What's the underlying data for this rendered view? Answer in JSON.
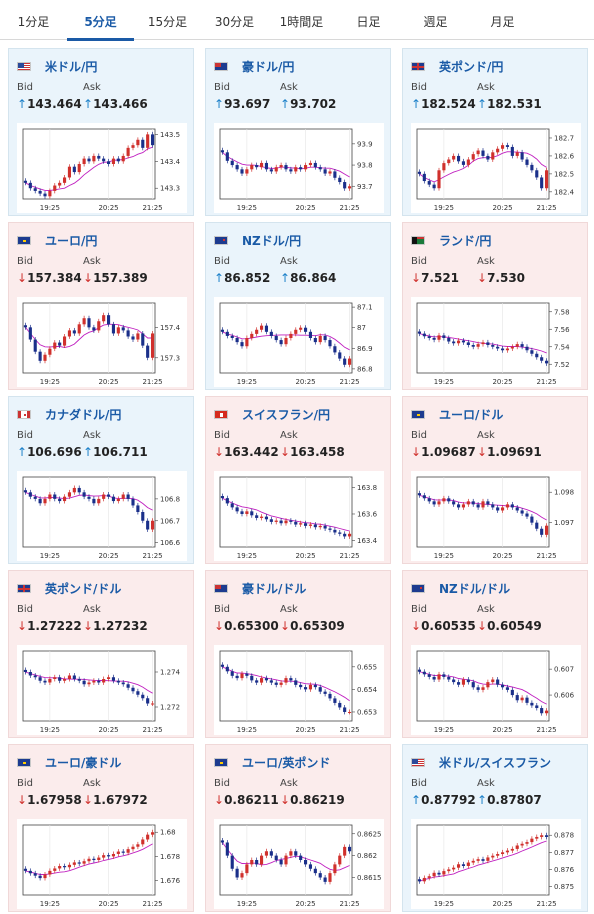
{
  "tabs": [
    {
      "label": "1分足",
      "active": false
    },
    {
      "label": "5分足",
      "active": true
    },
    {
      "label": "15分足",
      "active": false
    },
    {
      "label": "30分足",
      "active": false
    },
    {
      "label": "1時間足",
      "active": false
    },
    {
      "label": "日足",
      "active": false
    },
    {
      "label": "週足",
      "active": false
    },
    {
      "label": "月足",
      "active": false
    }
  ],
  "labels": {
    "bid": "Bid",
    "ask": "Ask"
  },
  "colors": {
    "up": "#1c80c9",
    "down": "#d0302c",
    "ma": "#c020c0",
    "link": "#1a5aa6"
  },
  "time_ticks": [
    "19:25",
    "20:25",
    "21:25"
  ],
  "pairs": [
    {
      "name": "米ドル/円",
      "flag": "us-flag",
      "dir": "up",
      "bid": "143.464",
      "ask": "143.466",
      "chart_data": {
        "type": "candlestick",
        "yticks": [
          "143.5",
          "143.4",
          "143.3"
        ],
        "ylim": [
          143.26,
          143.52
        ],
        "close": [
          143.32,
          143.3,
          143.29,
          143.28,
          143.27,
          143.29,
          143.31,
          143.32,
          143.34,
          143.38,
          143.36,
          143.39,
          143.41,
          143.4,
          143.42,
          143.41,
          143.4,
          143.39,
          143.41,
          143.4,
          143.42,
          143.45,
          143.46,
          143.48,
          143.45,
          143.5,
          143.46
        ]
      }
    },
    {
      "name": "豪ドル/円",
      "flag": "au-flag",
      "dir": "up",
      "bid": "93.697",
      "ask": "93.702",
      "chart_data": {
        "type": "candlestick",
        "yticks": [
          "93.9",
          "93.8",
          "93.7"
        ],
        "ylim": [
          93.64,
          93.97
        ],
        "close": [
          93.86,
          93.82,
          93.8,
          93.78,
          93.76,
          93.78,
          93.8,
          93.79,
          93.81,
          93.78,
          93.77,
          93.79,
          93.8,
          93.78,
          93.77,
          93.79,
          93.78,
          93.8,
          93.81,
          93.79,
          93.78,
          93.76,
          93.77,
          93.74,
          93.72,
          93.69,
          93.7
        ]
      }
    },
    {
      "name": "英ポンド/円",
      "flag": "gb-flag",
      "dir": "up",
      "bid": "182.524",
      "ask": "182.531",
      "chart_data": {
        "type": "candlestick",
        "yticks": [
          "182.7",
          "182.6",
          "182.5",
          "182.4"
        ],
        "ylim": [
          182.36,
          182.75
        ],
        "close": [
          182.5,
          182.46,
          182.44,
          182.42,
          182.52,
          182.56,
          182.58,
          182.6,
          182.57,
          182.55,
          182.58,
          182.61,
          182.63,
          182.6,
          182.58,
          182.62,
          182.64,
          182.66,
          182.65,
          182.6,
          182.62,
          182.58,
          182.55,
          182.52,
          182.48,
          182.42,
          182.52
        ]
      }
    },
    {
      "name": "ユーロ/円",
      "flag": "eu-flag",
      "dir": "down",
      "bid": "157.384",
      "ask": "157.389",
      "chart_data": {
        "type": "candlestick",
        "yticks": [
          "157.4",
          "157.3"
        ],
        "ylim": [
          157.25,
          157.48
        ],
        "close": [
          157.4,
          157.36,
          157.32,
          157.29,
          157.31,
          157.33,
          157.35,
          157.34,
          157.37,
          157.39,
          157.38,
          157.41,
          157.43,
          157.4,
          157.39,
          157.42,
          157.44,
          157.41,
          157.38,
          157.4,
          157.39,
          157.37,
          157.36,
          157.38,
          157.34,
          157.3,
          157.38
        ]
      }
    },
    {
      "name": "NZドル/円",
      "flag": "nz-flag",
      "dir": "up",
      "bid": "86.852",
      "ask": "86.864",
      "chart_data": {
        "type": "candlestick",
        "yticks": [
          "87.1",
          "87",
          "86.9",
          "86.8"
        ],
        "ylim": [
          86.78,
          87.12
        ],
        "close": [
          86.98,
          86.96,
          86.95,
          86.93,
          86.91,
          86.95,
          86.97,
          86.99,
          87.01,
          86.98,
          86.96,
          86.94,
          86.92,
          86.95,
          86.97,
          86.99,
          87.0,
          86.98,
          86.95,
          86.93,
          86.96,
          86.94,
          86.91,
          86.88,
          86.85,
          86.82,
          86.85
        ]
      }
    },
    {
      "name": "ランド/円",
      "flag": "za-flag",
      "dir": "down",
      "bid": "7.521",
      "ask": "7.530",
      "chart_data": {
        "type": "candlestick",
        "yticks": [
          "7.58",
          "7.56",
          "7.54",
          "7.52"
        ],
        "ylim": [
          7.51,
          7.59
        ],
        "close": [
          7.555,
          7.552,
          7.55,
          7.548,
          7.553,
          7.55,
          7.546,
          7.544,
          7.547,
          7.545,
          7.542,
          7.54,
          7.543,
          7.545,
          7.542,
          7.54,
          7.538,
          7.536,
          7.538,
          7.54,
          7.543,
          7.54,
          7.536,
          7.532,
          7.528,
          7.524,
          7.521
        ]
      }
    },
    {
      "name": "カナダドル/円",
      "flag": "ca-flag",
      "dir": "up",
      "bid": "106.696",
      "ask": "106.711",
      "chart_data": {
        "type": "candlestick",
        "yticks": [
          "106.8",
          "106.7",
          "106.6"
        ],
        "ylim": [
          106.58,
          106.9
        ],
        "close": [
          106.83,
          106.81,
          106.8,
          106.78,
          106.8,
          106.82,
          106.8,
          106.79,
          106.81,
          106.83,
          106.85,
          106.83,
          106.81,
          106.8,
          106.78,
          106.8,
          106.82,
          106.81,
          106.79,
          106.8,
          106.82,
          106.8,
          106.77,
          106.74,
          106.7,
          106.66,
          106.7
        ]
      }
    },
    {
      "name": "スイスフラン/円",
      "flag": "ch-flag",
      "dir": "down",
      "bid": "163.442",
      "ask": "163.458",
      "chart_data": {
        "type": "candlestick",
        "yticks": [
          "163.8",
          "163.6",
          "163.4"
        ],
        "ylim": [
          163.35,
          163.88
        ],
        "close": [
          163.72,
          163.68,
          163.65,
          163.62,
          163.6,
          163.62,
          163.59,
          163.57,
          163.58,
          163.56,
          163.54,
          163.55,
          163.53,
          163.55,
          163.54,
          163.52,
          163.53,
          163.51,
          163.52,
          163.5,
          163.51,
          163.49,
          163.48,
          163.46,
          163.45,
          163.43,
          163.45
        ]
      }
    },
    {
      "name": "ユーロ/ドル",
      "flag": "eu-us-flag",
      "dir": "down",
      "bid": "1.09687",
      "ask": "1.09691",
      "chart_data": {
        "type": "candlestick",
        "yticks": [
          "1.098",
          "1.097"
        ],
        "ylim": [
          1.0962,
          1.0985
        ],
        "close": [
          1.0979,
          1.0978,
          1.0977,
          1.0976,
          1.0977,
          1.0978,
          1.0977,
          1.0976,
          1.0975,
          1.0976,
          1.0977,
          1.0976,
          1.0975,
          1.0977,
          1.0976,
          1.0975,
          1.0974,
          1.0975,
          1.0976,
          1.0975,
          1.0974,
          1.0973,
          1.0972,
          1.097,
          1.0968,
          1.0966,
          1.0969
        ]
      }
    },
    {
      "name": "英ポンド/ドル",
      "flag": "gb-us-flag",
      "dir": "down",
      "bid": "1.27222",
      "ask": "1.27232",
      "chart_data": {
        "type": "candlestick",
        "yticks": [
          "1.274",
          "1.272"
        ],
        "ylim": [
          1.2712,
          1.2752
        ],
        "close": [
          1.274,
          1.2738,
          1.2737,
          1.2735,
          1.2734,
          1.2736,
          1.2737,
          1.2735,
          1.2736,
          1.2738,
          1.2736,
          1.2735,
          1.2733,
          1.2734,
          1.2735,
          1.2734,
          1.2736,
          1.2737,
          1.2735,
          1.2734,
          1.2733,
          1.2731,
          1.2729,
          1.2727,
          1.2725,
          1.2722,
          1.2722
        ]
      }
    },
    {
      "name": "豪ドル/ドル",
      "flag": "au-us-flag",
      "dir": "down",
      "bid": "0.65300",
      "ask": "0.65309",
      "chart_data": {
        "type": "candlestick",
        "yticks": [
          "0.655",
          "0.654",
          "0.653"
        ],
        "ylim": [
          0.6526,
          0.6557
        ],
        "close": [
          0.655,
          0.6548,
          0.6546,
          0.6545,
          0.6547,
          0.6546,
          0.6544,
          0.6543,
          0.6545,
          0.6544,
          0.6543,
          0.6542,
          0.6543,
          0.6545,
          0.6544,
          0.6542,
          0.6541,
          0.654,
          0.6542,
          0.6541,
          0.6539,
          0.6538,
          0.6536,
          0.6534,
          0.6532,
          0.653,
          0.653
        ]
      }
    },
    {
      "name": "NZドル/ドル",
      "flag": "nz-us-flag",
      "dir": "down",
      "bid": "0.60535",
      "ask": "0.60549",
      "chart_data": {
        "type": "candlestick",
        "yticks": [
          "0.607",
          "0.606"
        ],
        "ylim": [
          0.605,
          0.6077
        ],
        "close": [
          0.6069,
          0.6068,
          0.6067,
          0.6066,
          0.6068,
          0.6067,
          0.6066,
          0.6065,
          0.6064,
          0.6066,
          0.6065,
          0.6063,
          0.6062,
          0.6063,
          0.6065,
          0.6066,
          0.6064,
          0.6063,
          0.6062,
          0.606,
          0.6058,
          0.6059,
          0.6057,
          0.6056,
          0.6055,
          0.6053,
          0.6054
        ]
      }
    },
    {
      "name": "ユーロ/豪ドル",
      "flag": "eu-au-flag",
      "dir": "down",
      "bid": "1.67958",
      "ask": "1.67972",
      "chart_data": {
        "type": "candlestick",
        "yticks": [
          "1.68",
          "1.678",
          "1.676"
        ],
        "ylim": [
          1.6748,
          1.6806
        ],
        "close": [
          1.6768,
          1.6766,
          1.6764,
          1.6762,
          1.6765,
          1.6768,
          1.677,
          1.6772,
          1.6771,
          1.6773,
          1.6775,
          1.6774,
          1.6776,
          1.6778,
          1.6777,
          1.6779,
          1.6781,
          1.678,
          1.6782,
          1.6784,
          1.6783,
          1.6786,
          1.6788,
          1.679,
          1.6794,
          1.6798,
          1.68
        ]
      }
    },
    {
      "name": "ユーロ/英ポンド",
      "flag": "eu-gb-flag",
      "dir": "down",
      "bid": "0.86211",
      "ask": "0.86219",
      "chart_data": {
        "type": "candlestick",
        "yticks": [
          "0.8625",
          "0.862",
          "0.8615"
        ],
        "ylim": [
          0.8611,
          0.8627
        ],
        "close": [
          0.8623,
          0.862,
          0.8617,
          0.8615,
          0.8616,
          0.8618,
          0.8619,
          0.8618,
          0.862,
          0.8621,
          0.862,
          0.8619,
          0.8618,
          0.862,
          0.8621,
          0.862,
          0.8619,
          0.8618,
          0.8617,
          0.8616,
          0.8615,
          0.8614,
          0.8616,
          0.8618,
          0.862,
          0.8622,
          0.8621
        ]
      }
    },
    {
      "name": "米ドル/スイスフラン",
      "flag": "us-ch-flag",
      "dir": "up",
      "bid": "0.87792",
      "ask": "0.87807",
      "chart_data": {
        "type": "candlestick",
        "yticks": [
          "0.878",
          "0.877",
          "0.876",
          "0.875"
        ],
        "ylim": [
          0.8745,
          0.8786
        ],
        "close": [
          0.8753,
          0.8755,
          0.8756,
          0.8758,
          0.8757,
          0.8759,
          0.876,
          0.8761,
          0.8763,
          0.8762,
          0.8764,
          0.8765,
          0.8766,
          0.8765,
          0.8767,
          0.8768,
          0.8769,
          0.877,
          0.8771,
          0.8772,
          0.8774,
          0.8775,
          0.8776,
          0.8778,
          0.8779,
          0.878,
          0.8779
        ]
      }
    }
  ]
}
